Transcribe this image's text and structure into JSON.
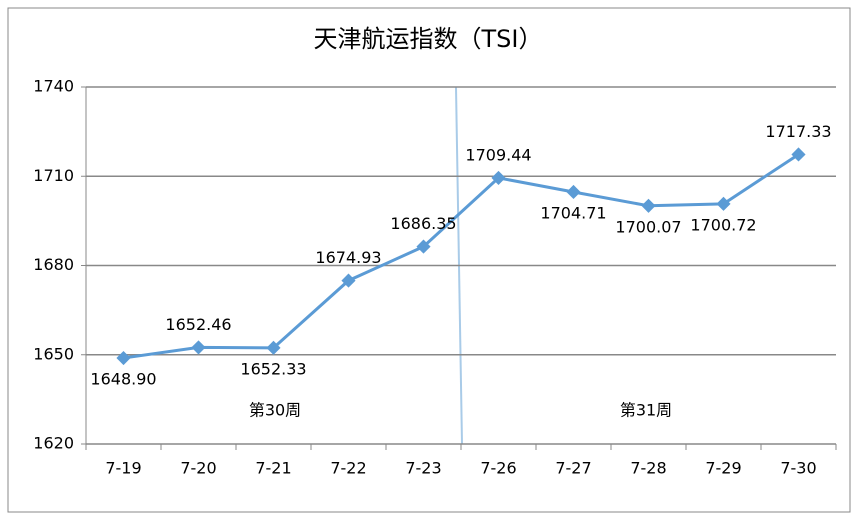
{
  "chart_data": {
    "type": "line",
    "title": "天津航运指数（TSI）",
    "categories": [
      "7-19",
      "7-20",
      "7-21",
      "7-22",
      "7-23",
      "7-26",
      "7-27",
      "7-28",
      "7-29",
      "7-30"
    ],
    "values": [
      1648.9,
      1652.46,
      1652.33,
      1674.93,
      1686.35,
      1709.44,
      1704.71,
      1700.07,
      1700.72,
      1717.33
    ],
    "value_labels": [
      "1648.90",
      "1652.46",
      "1652.33",
      "1674.93",
      "1686.35",
      "1709.44",
      "1704.71",
      "1700.07",
      "1700.72",
      "1717.33"
    ],
    "color": "#5b9bd5",
    "ylim": [
      1620,
      1740
    ],
    "yticks": [
      1620,
      1650,
      1680,
      1710,
      1740
    ],
    "grid": true,
    "annotations": [
      "第30周",
      "第31周"
    ]
  }
}
